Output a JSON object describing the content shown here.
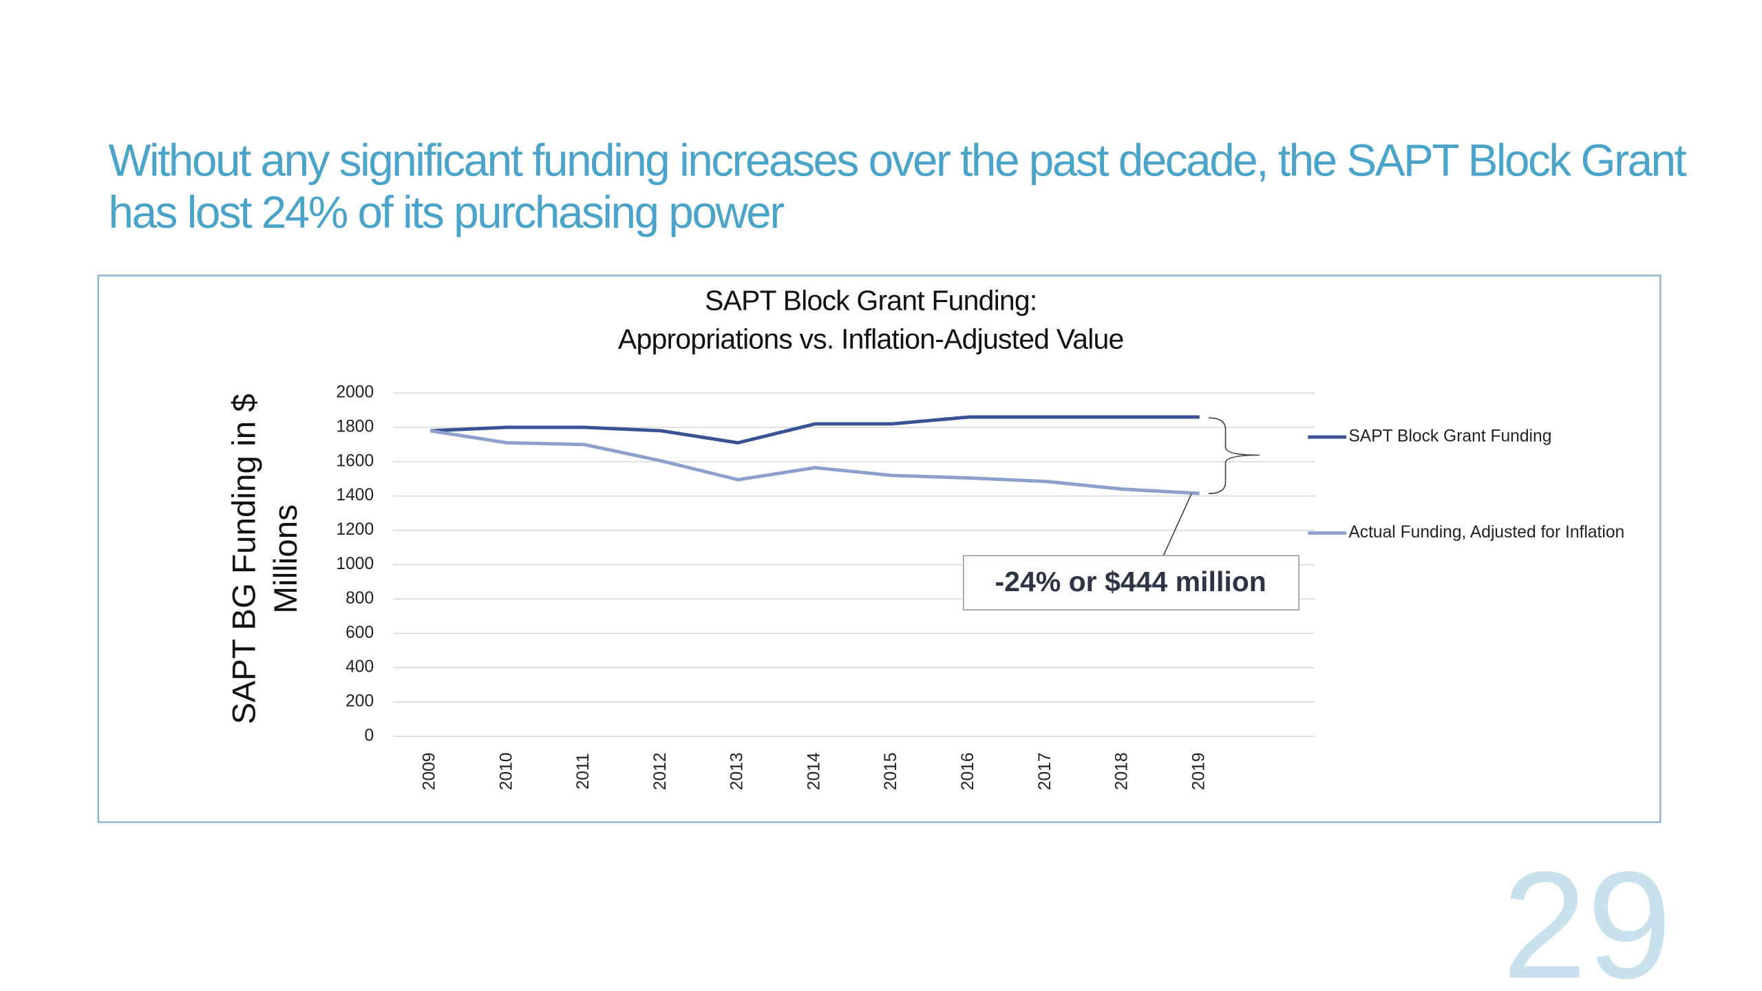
{
  "slide": {
    "heading": [
      "Without any significant funding increases over the past decade, the SAPT Block Grant",
      "has lost 24% of its purchasing power"
    ],
    "page_number": "29"
  },
  "chart_data": {
    "type": "line",
    "title": [
      "SAPT Block Grant Funding:",
      "Appropriations vs. Inflation-Adjusted Value"
    ],
    "ylabel": [
      "SAPT BG Funding in $",
      "Millions"
    ],
    "categories": [
      "2009",
      "2010",
      "2011",
      "2012",
      "2013",
      "2014",
      "2015",
      "2016",
      "2017",
      "2018",
      "2019"
    ],
    "series": [
      {
        "name": "SAPT Block Grant Funding",
        "color": "#3a5193",
        "values": [
          1780,
          1800,
          1800,
          1780,
          1710,
          1820,
          1820,
          1860,
          1860,
          1860,
          1860
        ]
      },
      {
        "name": "Actual Funding, Adjusted for Inflation",
        "color": "#8f9fcc",
        "values": [
          1780,
          1710,
          1700,
          1605,
          1495,
          1565,
          1520,
          1505,
          1485,
          1440,
          1415
        ]
      }
    ],
    "ylim": [
      0,
      2000
    ],
    "yticks": [
      0,
      200,
      400,
      600,
      800,
      1000,
      1200,
      1400,
      1600,
      1800,
      2000
    ],
    "grid": true,
    "legend": "right",
    "annotation": "-24% or $444 million"
  }
}
